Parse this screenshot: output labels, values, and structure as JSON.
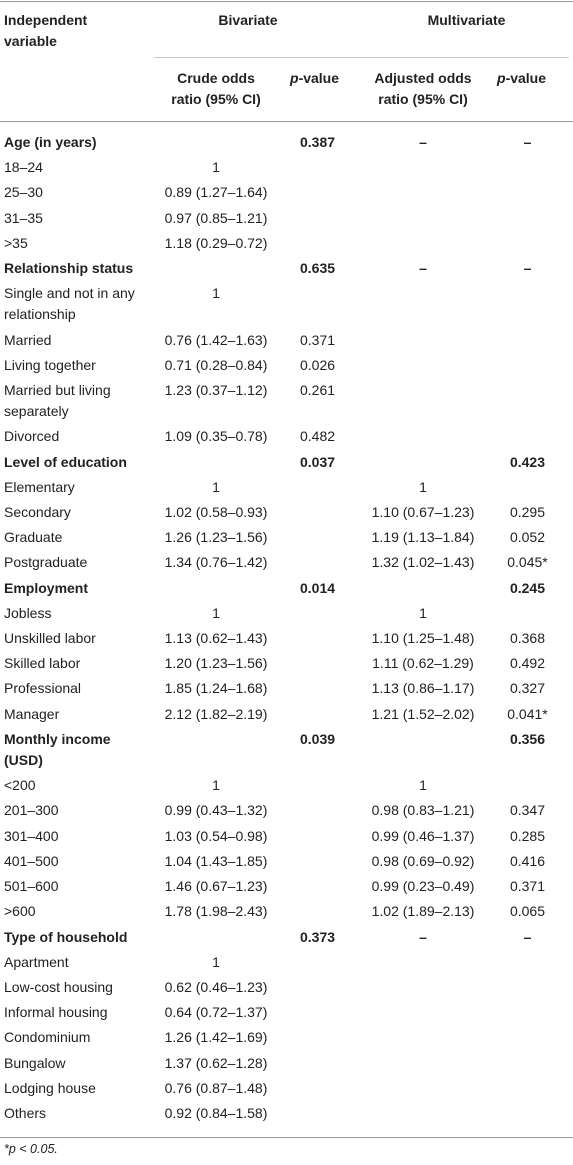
{
  "header": {
    "independent_variable": "Independent variable",
    "bivariate": "Bivariate",
    "multivariate": "Multivariate",
    "crude_odds": "Crude odds ratio (95% CI)",
    "p_value": "p-value",
    "adjusted_odds": "Adjusted odds ratio (95% CI)",
    "p_value_2": "p-value"
  },
  "table": {
    "rows": [
      {
        "group": true,
        "cells": [
          "Age (in years)",
          null,
          "0.387",
          "–",
          "–"
        ]
      },
      {
        "cells": [
          "18–24",
          "1",
          null,
          null,
          null
        ]
      },
      {
        "cells": [
          "25–30",
          "0.89 (1.27–1.64)",
          null,
          null,
          null
        ]
      },
      {
        "cells": [
          "31–35",
          "0.97 (0.85–1.21)",
          null,
          null,
          null
        ]
      },
      {
        "cells": [
          ">35",
          "1.18 (0.29–0.72)",
          null,
          null,
          null
        ]
      },
      {
        "group": true,
        "cells": [
          "Relationship status",
          null,
          "0.635",
          "–",
          "–"
        ]
      },
      {
        "cells": [
          "Single and not in any relationship",
          "1",
          null,
          null,
          null
        ]
      },
      {
        "cells": [
          "Married",
          "0.76 (1.42–1.63)",
          "0.371",
          null,
          null
        ]
      },
      {
        "cells": [
          "Living together",
          "0.71 (0.28–0.84)",
          "0.026",
          null,
          null
        ]
      },
      {
        "cells": [
          "Married but living separately",
          "1.23 (0.37–1.12)",
          "0.261",
          null,
          null
        ]
      },
      {
        "cells": [
          "Divorced",
          "1.09 (0.35–0.78)",
          "0.482",
          null,
          null
        ]
      },
      {
        "group": true,
        "cells": [
          "Level of education",
          null,
          "0.037",
          null,
          "0.423"
        ]
      },
      {
        "cells": [
          "Elementary",
          "1",
          null,
          "1",
          null
        ]
      },
      {
        "cells": [
          "Secondary",
          "1.02 (0.58–0.93)",
          null,
          "1.10 (0.67–1.23)",
          "0.295"
        ]
      },
      {
        "cells": [
          "Graduate",
          "1.26 (1.23–1.56)",
          null,
          "1.19 (1.13–1.84)",
          "0.052"
        ]
      },
      {
        "cells": [
          "Postgraduate",
          "1.34 (0.76–1.42)",
          null,
          "1.32 (1.02–1.43)",
          "0.045*"
        ]
      },
      {
        "group": true,
        "cells": [
          "Employment",
          null,
          "0.014",
          null,
          "0.245"
        ]
      },
      {
        "cells": [
          "Jobless",
          "1",
          null,
          "1",
          null
        ]
      },
      {
        "cells": [
          "Unskilled labor",
          "1.13 (0.62–1.43)",
          null,
          "1.10 (1.25–1.48)",
          "0.368"
        ]
      },
      {
        "cells": [
          "Skilled labor",
          "1.20 (1.23–1.56)",
          null,
          "1.11 (0.62–1.29)",
          "0.492"
        ]
      },
      {
        "cells": [
          "Professional",
          "1.85 (1.24–1.68)",
          null,
          "1.13 (0.86–1.17)",
          "0.327"
        ]
      },
      {
        "cells": [
          "Manager",
          "2.12 (1.82–2.19)",
          null,
          "1.21 (1.52–2.02)",
          "0.041*"
        ]
      },
      {
        "group": true,
        "cells": [
          "Monthly income (USD)",
          null,
          "0.039",
          null,
          "0.356"
        ]
      },
      {
        "cells": [
          "<200",
          "1",
          null,
          "1",
          null
        ]
      },
      {
        "cells": [
          "201–300",
          "0.99 (0.43–1.32)",
          null,
          "0.98 (0.83–1.21)",
          "0.347"
        ]
      },
      {
        "cells": [
          "301–400",
          "1.03 (0.54–0.98)",
          null,
          "0.99 (0.46–1.37)",
          "0.285"
        ]
      },
      {
        "cells": [
          "401–500",
          "1.04 (1.43–1.85)",
          null,
          "0.98 (0.69–0.92)",
          "0.416"
        ]
      },
      {
        "cells": [
          "501–600",
          "1.46 (0.67–1.23)",
          null,
          "0.99 (0.23–0.49)",
          "0.371"
        ]
      },
      {
        "cells": [
          ">600",
          "1.78 (1.98–2.43)",
          null,
          "1.02 (1.89–2.13)",
          "0.065"
        ]
      },
      {
        "group": true,
        "cells": [
          "Type of household",
          null,
          "0.373",
          "–",
          "–"
        ]
      },
      {
        "cells": [
          "Apartment",
          "1",
          null,
          null,
          null
        ]
      },
      {
        "cells": [
          "Low-cost housing",
          "0.62 (0.46–1.23)",
          null,
          null,
          null
        ]
      },
      {
        "cells": [
          "Informal housing",
          "0.64 (0.72–1.37)",
          null,
          null,
          null
        ]
      },
      {
        "cells": [
          "Condominium",
          "1.26 (1.42–1.69)",
          null,
          null,
          null
        ]
      },
      {
        "cells": [
          "Bungalow",
          "1.37 (0.62–1.28)",
          null,
          null,
          null
        ]
      },
      {
        "cells": [
          "Lodging house",
          "0.76 (0.87–1.48)",
          null,
          null,
          null
        ]
      },
      {
        "cells": [
          "Others",
          "0.92 (0.84–1.58)",
          null,
          null,
          null
        ]
      }
    ]
  },
  "footnote": "*p < 0.05."
}
